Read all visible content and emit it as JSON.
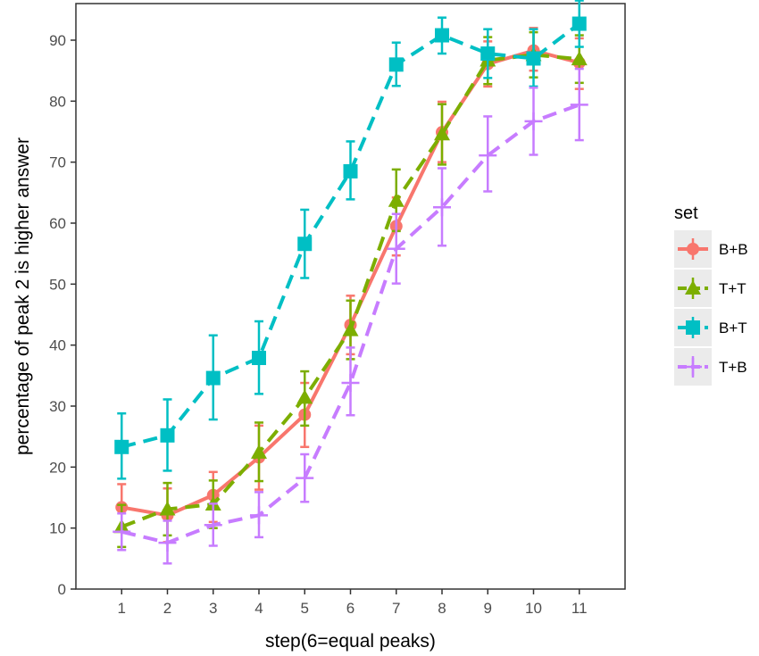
{
  "chart_data": {
    "type": "line",
    "title": "",
    "xlabel": "step(6=equal peaks)",
    "ylabel": "percentage of peak 2 is higher answer",
    "x": [
      1,
      2,
      3,
      4,
      5,
      6,
      7,
      8,
      9,
      10,
      11
    ],
    "x_tick_labels": [
      "1",
      "2",
      "3",
      "4",
      "5",
      "6",
      "7",
      "8",
      "9",
      "10",
      "11"
    ],
    "xlim": [
      0,
      12
    ],
    "y_ticks": [
      0,
      10,
      20,
      30,
      40,
      50,
      60,
      70,
      80,
      90
    ],
    "y_tick_labels": [
      "0",
      "10",
      "20",
      "30",
      "40",
      "50",
      "60",
      "70",
      "80",
      "90"
    ],
    "ylim": [
      0,
      96
    ],
    "grid": false,
    "legend_title": "set",
    "legend_position": "right",
    "series": [
      {
        "name": "B+B",
        "color": "#F8766D",
        "marker": "circle",
        "line": "solid",
        "values": [
          13.4,
          12.1,
          15.4,
          21.6,
          28.6,
          43.3,
          59.5,
          74.9,
          86.1,
          88.3,
          86.3
        ],
        "err_low": [
          9.6,
          7.7,
          11.0,
          16.3,
          23.3,
          38.5,
          54.7,
          70.0,
          82.4,
          85.0,
          82.0
        ],
        "err_high": [
          17.2,
          16.5,
          19.2,
          26.8,
          33.8,
          48.1,
          64.2,
          79.9,
          89.8,
          92.0,
          90.3
        ]
      },
      {
        "name": "T+T",
        "color": "#7CAE00",
        "marker": "triangle",
        "line": "dashed",
        "values": [
          10.2,
          13.1,
          13.9,
          22.4,
          31.4,
          42.5,
          63.7,
          74.6,
          86.7,
          87.6,
          86.9
        ],
        "err_low": [
          6.9,
          8.8,
          10.0,
          17.7,
          26.8,
          37.7,
          58.7,
          69.6,
          82.8,
          83.9,
          83.0
        ],
        "err_high": [
          13.8,
          17.4,
          17.8,
          27.3,
          35.7,
          47.3,
          68.8,
          79.5,
          90.5,
          91.3,
          90.8
        ]
      },
      {
        "name": "B+T",
        "color": "#00BFC4",
        "marker": "square",
        "line": "dashed",
        "values": [
          23.3,
          25.2,
          34.6,
          37.9,
          56.6,
          68.5,
          86.0,
          90.8,
          87.8,
          87.0,
          92.7
        ],
        "err_low": [
          18.1,
          19.4,
          27.8,
          32.0,
          51.0,
          63.9,
          82.5,
          87.8,
          83.8,
          82.4,
          88.9
        ],
        "err_high": [
          28.8,
          31.1,
          41.6,
          43.9,
          62.2,
          73.4,
          89.6,
          93.7,
          91.8,
          91.8,
          96.5
        ]
      },
      {
        "name": "T+B",
        "color": "#C77CFF",
        "marker": "cross",
        "line": "dashed",
        "values": [
          9.4,
          7.6,
          10.5,
          12.1,
          18.2,
          33.8,
          55.8,
          62.6,
          71.1,
          76.7,
          79.4
        ],
        "err_low": [
          6.4,
          4.2,
          7.1,
          8.5,
          14.3,
          28.5,
          50.1,
          56.3,
          65.2,
          71.2,
          73.6
        ],
        "err_high": [
          12.4,
          11.2,
          14.0,
          15.9,
          22.1,
          39.6,
          61.5,
          69.0,
          77.5,
          82.2,
          85.3
        ]
      }
    ]
  }
}
